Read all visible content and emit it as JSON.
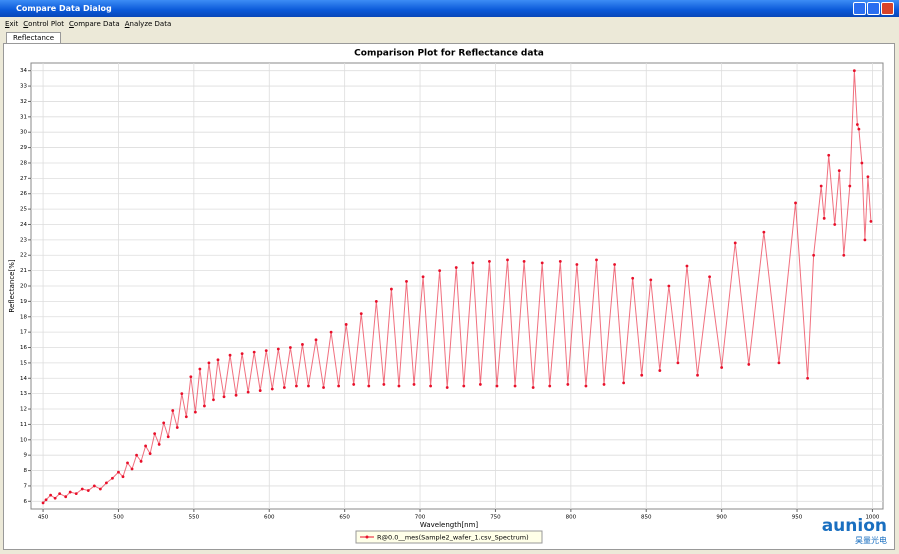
{
  "window": {
    "title": "Compare Data Dialog",
    "menu": [
      "Exit",
      "Control Plot",
      "Compare Data",
      "Analyze Data"
    ],
    "tab": "Reflectance"
  },
  "chart_data": {
    "type": "line",
    "title": "Comparison Plot for Reflectance data",
    "x_label": "Wavelength[nm]",
    "y_label": "Reflectance[%]",
    "x": [
      450,
      452,
      455,
      458,
      461,
      465,
      468,
      472,
      476,
      480,
      484,
      488,
      492,
      496,
      500,
      503,
      506,
      509,
      512,
      515,
      518,
      521,
      524,
      527,
      530,
      533,
      536,
      539,
      542,
      545,
      548,
      551,
      554,
      557,
      560,
      563,
      566,
      570,
      574,
      578,
      582,
      586,
      590,
      594,
      598,
      602,
      606,
      610,
      614,
      618,
      622,
      626,
      631,
      636,
      641,
      646,
      651,
      656,
      661,
      666,
      671,
      676,
      681,
      686,
      691,
      696,
      702,
      707,
      713,
      718,
      724,
      729,
      735,
      740,
      746,
      751,
      758,
      763,
      769,
      775,
      781,
      786,
      793,
      798,
      804,
      810,
      817,
      822,
      829,
      835,
      841,
      847,
      853,
      859,
      865,
      871,
      877,
      884,
      892,
      900,
      909,
      918,
      928,
      938,
      949,
      957,
      961,
      966,
      968,
      971,
      975,
      978,
      981,
      985,
      988,
      990,
      991,
      993,
      995,
      997,
      999
    ],
    "series": [
      {
        "name": "R@0.0__mes(Sample2_wafer_1.csv_Spectrum)",
        "color": "#e8102a",
        "values": [
          5.9,
          6.1,
          6.4,
          6.2,
          6.5,
          6.3,
          6.6,
          6.5,
          6.8,
          6.7,
          7.0,
          6.8,
          7.2,
          7.5,
          7.9,
          7.6,
          8.5,
          8.1,
          9.0,
          8.6,
          9.6,
          9.1,
          10.4,
          9.7,
          11.1,
          10.2,
          11.9,
          10.8,
          13.0,
          11.5,
          14.1,
          11.8,
          14.6,
          12.2,
          15.0,
          12.6,
          15.2,
          12.8,
          15.5,
          12.9,
          15.6,
          13.1,
          15.7,
          13.2,
          15.8,
          13.3,
          15.9,
          13.4,
          16.0,
          13.5,
          16.2,
          13.5,
          16.5,
          13.4,
          17.0,
          13.5,
          17.5,
          13.6,
          18.2,
          13.5,
          19.0,
          13.6,
          19.8,
          13.5,
          20.3,
          13.6,
          20.6,
          13.5,
          21.0,
          13.4,
          21.2,
          13.5,
          21.5,
          13.6,
          21.6,
          13.5,
          21.7,
          13.5,
          21.6,
          13.4,
          21.5,
          13.5,
          21.6,
          13.6,
          21.4,
          13.5,
          21.7,
          13.6,
          21.4,
          13.7,
          20.5,
          14.2,
          20.4,
          14.5,
          20.0,
          15.0,
          21.3,
          14.2,
          20.6,
          14.7,
          22.8,
          14.9,
          23.5,
          15.0,
          25.4,
          14.0,
          22.0,
          26.5,
          24.4,
          28.5,
          24.0,
          27.5,
          22.0,
          26.5,
          34.0,
          30.5,
          30.2,
          28.0,
          23.0,
          27.1,
          24.2
        ]
      }
    ],
    "xlim": [
      442,
      1007
    ],
    "ylim": [
      5.5,
      34.5
    ],
    "xticks": [
      450,
      500,
      550,
      600,
      650,
      700,
      750,
      800,
      850,
      900,
      950,
      1000
    ],
    "yticks": [
      6,
      7,
      8,
      9,
      10,
      11,
      12,
      13,
      14,
      15,
      16,
      17,
      18,
      19,
      20,
      21,
      22,
      23,
      24,
      25,
      26,
      27,
      28,
      29,
      30,
      31,
      32,
      33,
      34
    ],
    "grid": true,
    "legend": "bottom"
  },
  "watermark": {
    "brand": "aunion",
    "subtitle": "昊量光电"
  }
}
